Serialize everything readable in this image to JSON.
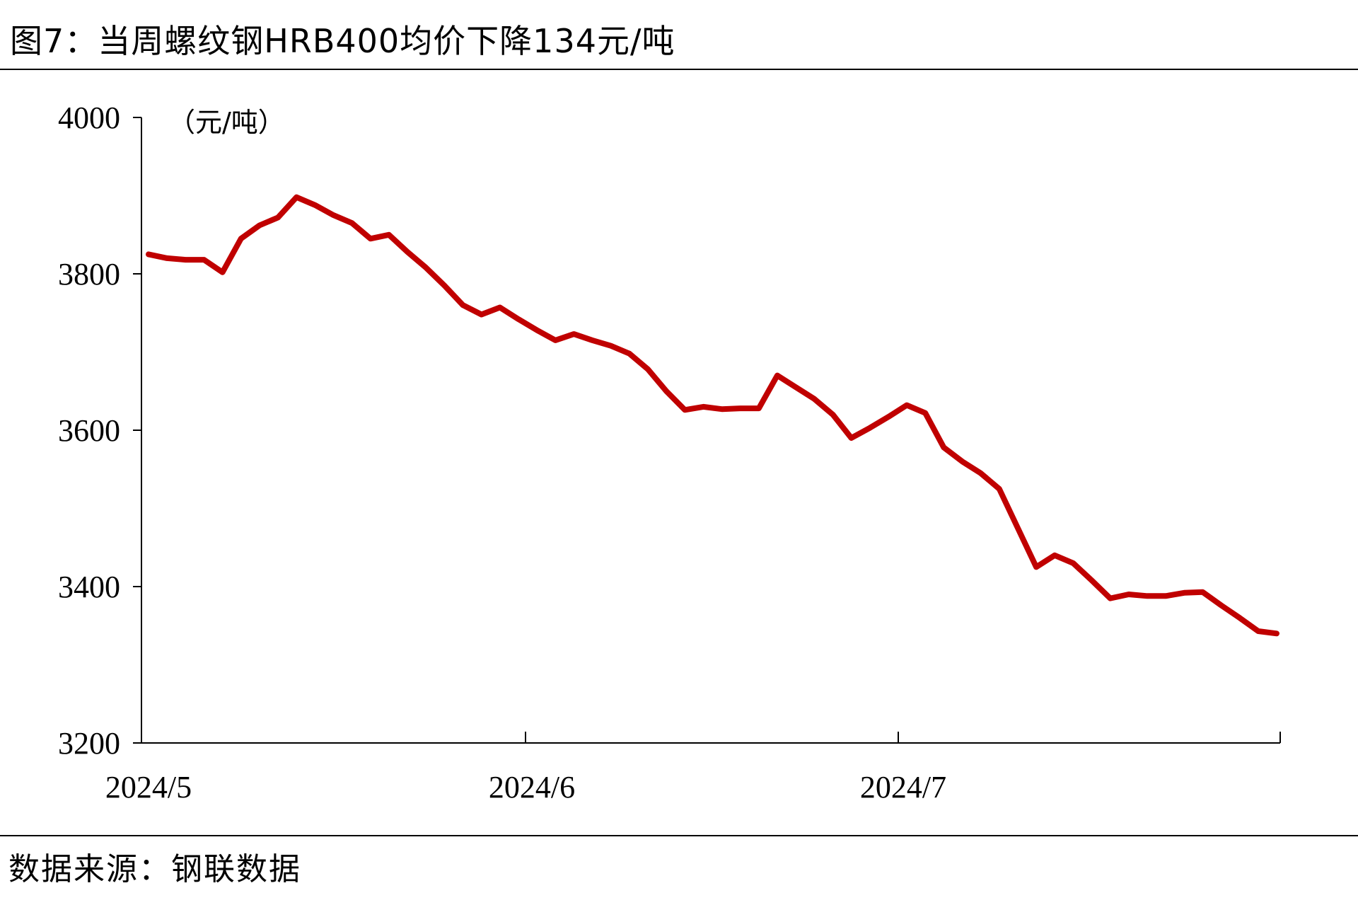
{
  "figure": {
    "title": "图7：当周螺纹钢HRB400均价下降134元/吨",
    "source": "数据来源：钢联数据"
  },
  "chart_data": {
    "type": "line",
    "title": "",
    "unit_label": "（元/吨）",
    "xlabel": "",
    "ylabel": "",
    "ylim": [
      3200,
      4000
    ],
    "yticks": [
      3200,
      3400,
      3600,
      3800,
      4000
    ],
    "x_tick_labels": [
      "2024/5",
      "2024/6",
      "2024/7"
    ],
    "x_tick_index": [
      0,
      21,
      42
    ],
    "x_count": 65,
    "grid": false,
    "legend": "none",
    "line_color": "#c00000",
    "series": [
      {
        "values": [
          3825,
          3820,
          3818,
          3818,
          3802,
          3845,
          3862,
          3872,
          3898,
          3888,
          3875,
          3865,
          3845,
          3850,
          3828,
          3808,
          3785,
          3760,
          3748,
          3757,
          3742,
          3728,
          3715,
          3723,
          3715,
          3708,
          3698,
          3678,
          3650,
          3626,
          3630,
          3627,
          3628,
          3628,
          3670,
          3655,
          3640,
          3620,
          3590,
          3603,
          3617,
          3632,
          3622,
          3578,
          3560,
          3545,
          3525,
          3475,
          3425,
          3440,
          3430,
          3408,
          3385,
          3390,
          3388,
          3388,
          3392,
          3393,
          3376,
          3360,
          3343,
          3340
        ]
      }
    ]
  }
}
